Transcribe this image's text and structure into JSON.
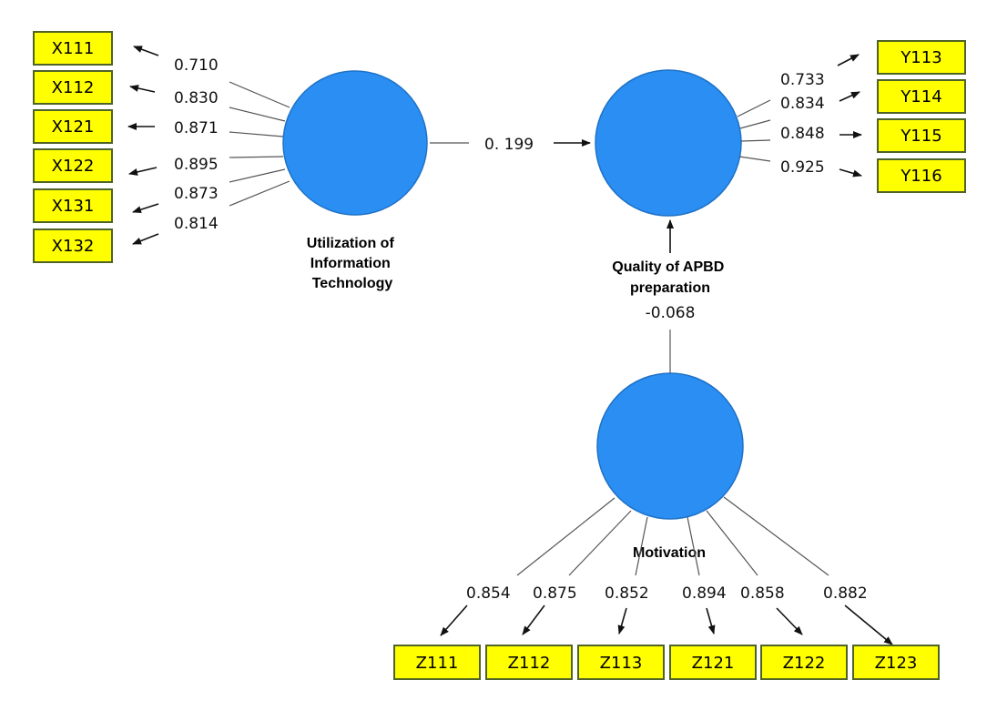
{
  "constructs": {
    "it": {
      "name_lines": [
        "Utilization of",
        "Information",
        "Technology"
      ]
    },
    "quality": {
      "name_lines": [
        "Quality of APBD",
        "preparation"
      ]
    },
    "motivation": {
      "name_lines": [
        "Motivation"
      ]
    }
  },
  "indicators": {
    "x": [
      {
        "label": "X111",
        "loading": "0.710"
      },
      {
        "label": "X112",
        "loading": "0.830"
      },
      {
        "label": "X121",
        "loading": "0.871"
      },
      {
        "label": "X122",
        "loading": "0.895"
      },
      {
        "label": "X131",
        "loading": "0.873"
      },
      {
        "label": "X132",
        "loading": "0.814"
      }
    ],
    "y": [
      {
        "label": "Y113",
        "loading": "0.733"
      },
      {
        "label": "Y114",
        "loading": "0.834"
      },
      {
        "label": "Y115",
        "loading": "0.848"
      },
      {
        "label": "Y116",
        "loading": "0.925"
      }
    ],
    "z": [
      {
        "label": "Z111",
        "loading": "0.854"
      },
      {
        "label": "Z112",
        "loading": "0.875"
      },
      {
        "label": "Z113",
        "loading": "0.852"
      },
      {
        "label": "Z121",
        "loading": "0.894"
      },
      {
        "label": "Z122",
        "loading": "0.858"
      },
      {
        "label": "Z123",
        "loading": "0.882"
      }
    ]
  },
  "paths": {
    "it_to_quality": "0. 199",
    "motivation_to_quality": "-0.068"
  },
  "colors": {
    "latent_fill": "#2a8ef3",
    "indicator_fill": "#ffff00",
    "indicator_border": "#4f6228"
  }
}
